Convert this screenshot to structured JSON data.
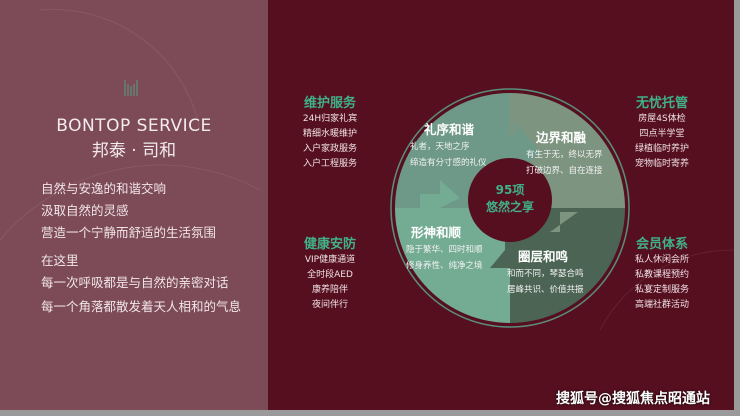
{
  "left": {
    "title_en": "BONTOP SERVICE",
    "title_cn": "邦泰 · 司和",
    "lines": [
      "自然与安逸的和谐交响",
      "汲取自然的灵感",
      "营造一个宁静而舒适的生活氛围",
      "在这里",
      "每一次呼吸都是与自然的亲密对话",
      "每一个角落都散发着天人相和的气息"
    ]
  },
  "groups": [
    {
      "title": "维护服务",
      "items": [
        "24H归家礼宾",
        "精细水暖维护",
        "入户家政服务",
        "入户工程服务"
      ]
    },
    {
      "title": "健康安防",
      "items": [
        "VIP健康通道",
        "全时段AED",
        "康养陪伴",
        "夜间伴行"
      ]
    },
    {
      "title": "无忧托管",
      "items": [
        "房屋4S体检",
        "四点半学堂",
        "绿植临时养护",
        "宠物临时寄养"
      ]
    },
    {
      "title": "会员体系",
      "items": [
        "私人休闲会所",
        "私教课程预约",
        "私宴定制服务",
        "高端社群活动"
      ]
    }
  ],
  "wheel": {
    "center": [
      "95项",
      "悠然之享"
    ],
    "quadrants": [
      {
        "title": "礼序和谐",
        "lines": [
          "礼者，天地之序",
          "缔造有分寸感的礼仪"
        ],
        "color": "#6e9888"
      },
      {
        "title": "边界和融",
        "lines": [
          "有生于无，终以无界",
          "打破边界、自在连接"
        ],
        "color": "#7d9480"
      },
      {
        "title": "形神和顺",
        "lines": [
          "隐于繁华、四时和顺",
          "修身养性、纯净之境"
        ],
        "color": "#73ab93"
      },
      {
        "title": "圈层和鸣",
        "lines": [
          "和而不同，琴瑟合鸣",
          "居峰共识、价值共振"
        ],
        "color": "#4b6453"
      }
    ]
  },
  "watermark": "搜狐号@搜狐焦点昭通站",
  "colors": {
    "background": "#560f1f",
    "panel": "#7d4a58",
    "accent": "#3fb08a"
  }
}
